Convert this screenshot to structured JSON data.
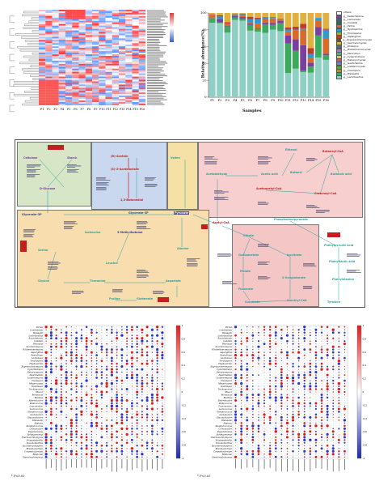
{
  "heatmap": {
    "x_labels": [
      "F1",
      "F2",
      "F3",
      "F4",
      "F5",
      "F6",
      "F7",
      "F8",
      "F9",
      "F10",
      "F11",
      "F12",
      "F13",
      "F14",
      "F15",
      "F16"
    ]
  },
  "bar_panel": {
    "ylabel": "Relative abundance(%)",
    "xlabel": "Samples",
    "ticks_y": [
      "0",
      "20",
      "40",
      "60",
      "80",
      "100"
    ],
    "legend": [
      {
        "name": "others",
        "color": "#ffffff"
      },
      {
        "name": "g__Kazachstania",
        "color": "#7b3fa0"
      },
      {
        "name": "g__Lachancea",
        "color": "#3d5aa8"
      },
      {
        "name": "g__Candida",
        "color": "#1f7a3a"
      },
      {
        "name": "g__Pichia",
        "color": "#d96a2a"
      },
      {
        "name": "g__Hyphopichia",
        "color": "#2b9ad1"
      },
      {
        "name": "g__Torulaspora",
        "color": "#8fb83d"
      },
      {
        "name": "g__Aspergillus",
        "color": "#c2382a"
      },
      {
        "name": "g__Zygosaccharomyces",
        "color": "#6f4e37"
      },
      {
        "name": "g__Saccharomyces",
        "color": "#e0b040"
      },
      {
        "name": "g__Rhizopus",
        "color": "#5a6b7a"
      },
      {
        "name": "g__Wickerhamomyces",
        "color": "#aa77cc"
      },
      {
        "name": "g__Penicillium",
        "color": "#55aa88"
      },
      {
        "name": "g__Cyberlindnera",
        "color": "#d0d060"
      },
      {
        "name": "g__Debaryomyces",
        "color": "#cc5577"
      },
      {
        "name": "g__Issatchenkia",
        "color": "#6688cc"
      },
      {
        "name": "g__Lodderomyces",
        "color": "#44aa44"
      },
      {
        "name": "g__Clavispora",
        "color": "#bb8844"
      },
      {
        "name": "g__Weissella",
        "color": "#3caa5c"
      },
      {
        "name": "g__Lactobacillus",
        "color": "#8ed0c4"
      }
    ],
    "samples": [
      "F1",
      "F2",
      "F3",
      "F4",
      "F5",
      "F6",
      "F7",
      "F8",
      "F9",
      "F10",
      "F11",
      "F12",
      "F13",
      "F14",
      "F15",
      "F16"
    ]
  },
  "pathway": {
    "nodes": {
      "cellulose": "Cellulose",
      "starch": "Starch",
      "glucose": "D-Glucose",
      "glycerate": "Glycerate-3P",
      "pyruvate": "Pyruvate",
      "acetyl_coa": "Acetyl-CoA",
      "acetaldehyde": "Acetaldehyde",
      "ethanol": "Ethanol",
      "acetic_acid": "Acetic acid",
      "acetoacetyl": "Acetoacetyl-CoA",
      "butanoyl": "Butanoyl-CoA",
      "crotonoyl": "Crotonoyl-CoA",
      "butanol": "Butanol",
      "butanoic": "Butanoic acid",
      "serine": "Serine",
      "glycine": "Glycine",
      "threonine": "Threonine",
      "isoleucine": "Isoleucine",
      "valine": "Valine",
      "leucine": "Leucine",
      "alanine": "Alanine",
      "aspartate": "Aspartate",
      "proline": "Proline",
      "glutamate": "Glutamate",
      "citrate": "Citrate",
      "oxaloacetate": "Oxaloacetate",
      "malate": "Malate",
      "fumarate": "Fumarate",
      "succinate": "Succinate",
      "succinyl": "Succinyl-CoA",
      "oxoglutarate": "2-Oxoglutarate",
      "isocitrate": "Isocitrate",
      "phosphoenol": "Phosphoenolpyruvate",
      "phenylalanine": "Phenylalanine",
      "tyrosine": "Tyrosine",
      "phenyllactic": "Phenyllactic acid",
      "phenylpyruvic": "Phenylpyruvic acid",
      "diacetyl": "(R)-Acetoin",
      "butanediol": "2,3-Butanediol",
      "acetolactate": "(S)-2-Acetolactate",
      "methylbutanal": "3-Methylbutanal"
    }
  },
  "corr_left": {
    "rows": [
      "Pichia",
      "Lichtheimia",
      "Weissella",
      "Lactobacillus",
      "Kazachstania",
      "Candida",
      "Rhizopus",
      "Saccharomyces",
      "Wickerhamomyces",
      "Aspergillus",
      "Penicillium",
      "Lachancea",
      "Torulaspora",
      "Hyphopichia",
      "Zygosaccharomyces",
      "Cyberlindnera",
      "Debaryomyces",
      "Issatchenkia",
      "Lodderomyces",
      "Clavispora",
      "Meyerozyma",
      "Kodamaea",
      "Trichosporon",
      "Mucor",
      "Monascus",
      "Bacillus",
      "Enterobacter",
      "Pediococcus",
      "Leuconostoc",
      "Lactococcus",
      "Streptococcus",
      "Acetobacter",
      "Gluconobacter",
      "Klebsiella",
      "Pantoea",
      "Staphylococcus",
      "Cronobacter",
      "Pseudomonas",
      "Sphingomonas",
      "Thermoactinomyces",
      "Kroppenstedtia",
      "Oceanobacillus",
      "Saccharopolyspora",
      "Brevibacterium",
      "Corynebacterium",
      "Ralstonia",
      "Stenotrophomonas"
    ],
    "cols_count": 24,
    "note": "* P<0.05",
    "scale": [
      "1",
      "0.8",
      "0.6",
      "0.4",
      "0.2",
      "0",
      "-0.2",
      "-0.4",
      "-0.6",
      "-0.8",
      "-1"
    ]
  },
  "corr_right": {
    "rows": [
      "Pichia",
      "Lichtheimia",
      "Weissella",
      "Lactobacillus",
      "Kazachstania",
      "Candida",
      "Rhizopus",
      "Saccharomyces",
      "Wickerhamomyces",
      "Aspergillus",
      "Penicillium",
      "Lachancea",
      "Torulaspora",
      "Hyphopichia",
      "Zygosaccharomyces",
      "Cyberlindnera",
      "Debaryomyces",
      "Issatchenkia",
      "Lodderomyces",
      "Clavispora",
      "Meyerozyma",
      "Kodamaea",
      "Trichosporon",
      "Mucor",
      "Monascus",
      "Bacillus",
      "Enterobacter",
      "Pediococcus",
      "Leuconostoc",
      "Lactococcus",
      "Streptococcus",
      "Acetobacter",
      "Gluconobacter",
      "Klebsiella",
      "Pantoea",
      "Staphylococcus",
      "Cronobacter",
      "Pseudomonas",
      "Sphingomonas",
      "Thermoactinomyces",
      "Kroppenstedtia",
      "Oceanobacillus",
      "Saccharopolyspora",
      "Brevibacterium",
      "Corynebacterium",
      "Ralstonia",
      "Stenotrophomonas"
    ],
    "cols_count": 20,
    "note": "* P<0.05",
    "scale": [
      "1",
      "0.8",
      "0.6",
      "0.4",
      "0.2",
      "0",
      "-0.2",
      "-0.4",
      "-0.6",
      "-0.8",
      "-1"
    ]
  }
}
